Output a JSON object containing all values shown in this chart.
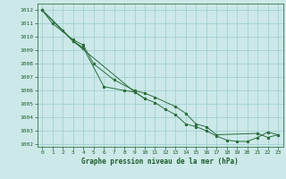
{
  "title": "Graphe pression niveau de la mer (hPa)",
  "bg_color": "#cce8e8",
  "line_color": "#2d6e3e",
  "grid_color": "#99cccc",
  "text_color": "#1a5c2a",
  "xlim": [
    -0.5,
    23.5
  ],
  "ylim": [
    1001.8,
    1012.5
  ],
  "yticks": [
    1002,
    1003,
    1004,
    1005,
    1006,
    1007,
    1008,
    1009,
    1010,
    1011,
    1012
  ],
  "xticks": [
    0,
    1,
    2,
    3,
    4,
    5,
    6,
    7,
    8,
    9,
    10,
    11,
    12,
    13,
    14,
    15,
    16,
    17,
    18,
    19,
    20,
    21,
    22,
    23
  ],
  "series1_x": [
    0,
    1,
    3,
    4,
    5,
    7,
    9,
    10,
    11,
    13,
    14,
    15,
    16,
    17,
    21,
    22,
    23
  ],
  "series1_y": [
    1012.0,
    1011.0,
    1009.8,
    1009.4,
    1008.0,
    1006.8,
    1006.0,
    1005.8,
    1005.5,
    1004.8,
    1004.3,
    1003.5,
    1003.3,
    1002.7,
    1002.8,
    1002.5,
    1002.7
  ],
  "series2_x": [
    0,
    2,
    3,
    9,
    10
  ],
  "series2_y": [
    1012.0,
    1010.5,
    1009.7,
    1005.9,
    1005.4
  ],
  "series3_x": [
    0,
    3,
    4,
    6,
    8,
    9,
    10,
    11,
    12,
    13,
    14,
    15,
    16,
    17,
    18,
    19,
    20,
    21,
    22,
    23
  ],
  "series3_y": [
    1012.0,
    1009.7,
    1009.2,
    1006.3,
    1006.0,
    1005.9,
    1005.4,
    1005.1,
    1004.6,
    1004.2,
    1003.5,
    1003.3,
    1003.0,
    1002.6,
    1002.3,
    1002.2,
    1002.2,
    1002.5,
    1002.9,
    1002.7
  ],
  "series4_x": [
    0,
    3,
    4
  ],
  "series4_y": [
    1012.0,
    1009.7,
    1009.15
  ]
}
